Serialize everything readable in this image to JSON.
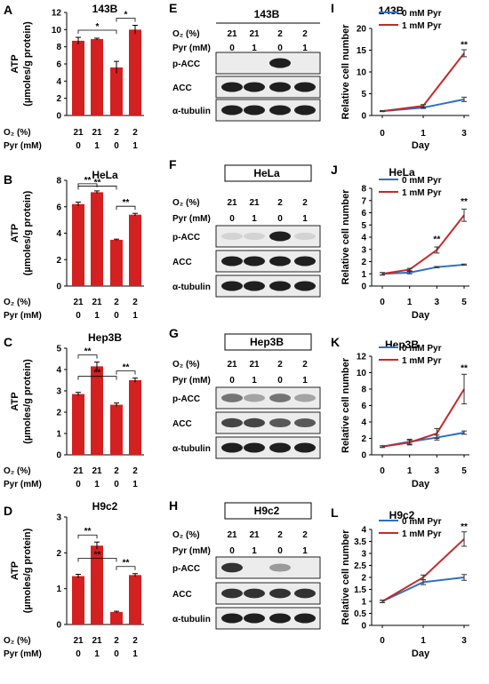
{
  "panels": {
    "bar_ylabel_1": "ATP",
    "bar_ylabel_2": "(µmoles/g protein)",
    "cond_row1_label": "O₂ (%)",
    "cond_row2_label": "Pyr (mM)",
    "cond_o2": [
      "21",
      "21",
      "2",
      "2"
    ],
    "cond_pyr": [
      "0",
      "1",
      "0",
      "1"
    ],
    "blot_rows": [
      "p-ACC",
      "ACC",
      "α-tubulin"
    ],
    "growth_xlabel": "Day",
    "growth_ylabel": "Relative cell number"
  },
  "colors": {
    "bar": "#d42020",
    "series_0mM": "#2e6fc4",
    "series_1mM": "#c42a2a"
  },
  "chart_data": [
    {
      "type": "bar",
      "letter": "A",
      "title": "143B",
      "categories": [
        "21/0",
        "21/1",
        "2/0",
        "2/1"
      ],
      "values": [
        8.7,
        8.9,
        5.6,
        10.0
      ],
      "errors": [
        0.4,
        0.1,
        0.7,
        0.5
      ],
      "ylim": [
        0,
        12
      ],
      "yticks": [
        0,
        2,
        4,
        6,
        8,
        10,
        12
      ],
      "sig": [
        {
          "from": 0,
          "to": 2,
          "label": "*"
        },
        {
          "from": 2,
          "to": 3,
          "label": "*"
        }
      ]
    },
    {
      "type": "bar",
      "letter": "B",
      "title": "HeLa",
      "categories": [
        "21/0",
        "21/1",
        "2/0",
        "2/1"
      ],
      "values": [
        6.2,
        7.1,
        3.5,
        5.4
      ],
      "errors": [
        0.15,
        0.1,
        0.05,
        0.1
      ],
      "ylim": [
        0,
        8
      ],
      "yticks": [
        0,
        2,
        4,
        6,
        8
      ],
      "sig": [
        {
          "from": 0,
          "to": 1,
          "label": "**"
        },
        {
          "from": 0,
          "to": 2,
          "label": "**"
        },
        {
          "from": 2,
          "to": 3,
          "label": "**"
        }
      ]
    },
    {
      "type": "bar",
      "letter": "C",
      "title": "Hep3B",
      "categories": [
        "21/0",
        "21/1",
        "2/0",
        "2/1"
      ],
      "values": [
        2.85,
        4.15,
        2.35,
        3.5
      ],
      "errors": [
        0.08,
        0.2,
        0.08,
        0.1
      ],
      "ylim": [
        0,
        5
      ],
      "yticks": [
        0,
        1,
        2,
        3,
        4,
        5
      ],
      "sig": [
        {
          "from": 0,
          "to": 1,
          "label": "**"
        },
        {
          "from": 0,
          "to": 2,
          "label": "**"
        },
        {
          "from": 2,
          "to": 3,
          "label": "**"
        }
      ]
    },
    {
      "type": "bar",
      "letter": "D",
      "title": "H9c2",
      "categories": [
        "21/0",
        "21/1",
        "2/0",
        "2/1"
      ],
      "values": [
        1.35,
        2.2,
        0.35,
        1.38
      ],
      "errors": [
        0.05,
        0.1,
        0.02,
        0.04
      ],
      "ylim": [
        0,
        3
      ],
      "yticks": [
        0,
        1,
        2,
        3
      ],
      "sig": [
        {
          "from": 0,
          "to": 1,
          "label": "**"
        },
        {
          "from": 0,
          "to": 2,
          "label": "**"
        },
        {
          "from": 2,
          "to": 3,
          "label": "**"
        }
      ]
    },
    {
      "type": "line",
      "letter": "I",
      "title": "143B",
      "x": [
        "0",
        "1",
        "3"
      ],
      "series": [
        {
          "name": "0 mM Pyr",
          "values": [
            1.0,
            1.8,
            3.7
          ],
          "errors": [
            0.1,
            0.2,
            0.5
          ]
        },
        {
          "name": "1 mM Pyr",
          "values": [
            1.0,
            2.2,
            14.3
          ],
          "errors": [
            0.1,
            0.3,
            0.8
          ]
        }
      ],
      "ylim": [
        0,
        20
      ],
      "yticks": [
        0,
        5,
        10,
        15,
        20
      ],
      "annot": [
        {
          "x": 2,
          "y": 15.6,
          "label": "**"
        }
      ],
      "legend": "top-left",
      "xlabel": "Day",
      "ylabel": "Relative cell number"
    },
    {
      "type": "line",
      "letter": "J",
      "title": "HeLa",
      "x": [
        "0",
        "1",
        "3",
        "5"
      ],
      "series": [
        {
          "name": "0 mM Pyr",
          "values": [
            1.0,
            1.1,
            1.55,
            1.75
          ],
          "errors": [
            0.1,
            0.1,
            0.05,
            0.05
          ]
        },
        {
          "name": "1 mM Pyr",
          "values": [
            1.0,
            1.35,
            2.95,
            5.8
          ],
          "errors": [
            0.1,
            0.1,
            0.25,
            0.5
          ]
        }
      ],
      "ylim": [
        0,
        8
      ],
      "yticks": [
        0,
        1,
        2,
        3,
        4,
        5,
        6,
        7,
        8
      ],
      "annot": [
        {
          "x": 2,
          "y": 3.6,
          "label": "**"
        },
        {
          "x": 3,
          "y": 6.7,
          "label": "**"
        }
      ],
      "legend": "top-left",
      "xlabel": "Day",
      "ylabel": "Relative cell number"
    },
    {
      "type": "line",
      "letter": "K",
      "title": "Hep3B",
      "x": [
        "0",
        "1",
        "3",
        "5"
      ],
      "series": [
        {
          "name": "0 mM Pyr",
          "values": [
            1.0,
            1.6,
            2.1,
            2.7
          ],
          "errors": [
            0.1,
            0.3,
            0.3,
            0.2
          ]
        },
        {
          "name": "1 mM Pyr",
          "values": [
            1.0,
            1.5,
            2.6,
            8.0
          ],
          "errors": [
            0.1,
            0.3,
            0.6,
            1.8
          ]
        }
      ],
      "ylim": [
        0,
        12
      ],
      "yticks": [
        0,
        2,
        4,
        6,
        8,
        10,
        12
      ],
      "annot": [
        {
          "x": 3,
          "y": 10.2,
          "label": "**"
        }
      ],
      "legend": "top-left",
      "xlabel": "Day",
      "ylabel": "Relative cell number"
    },
    {
      "type": "line",
      "letter": "L",
      "title": "H9c2",
      "x": [
        "0",
        "1",
        "3"
      ],
      "series": [
        {
          "name": "0 mM Pyr",
          "values": [
            1.0,
            1.8,
            2.0
          ],
          "errors": [
            0.05,
            0.1,
            0.12
          ]
        },
        {
          "name": "1 mM Pyr",
          "values": [
            1.0,
            2.0,
            3.6
          ],
          "errors": [
            0.05,
            0.1,
            0.3
          ]
        }
      ],
      "ylim": [
        0,
        4
      ],
      "yticks": [
        0,
        0.5,
        1,
        1.5,
        2,
        2.5,
        3,
        3.5,
        4
      ],
      "annot": [
        {
          "x": 2,
          "y": 4.0,
          "label": "**"
        }
      ],
      "legend": "top-left",
      "xlabel": "Day",
      "ylabel": "Relative cell number"
    }
  ],
  "blots": [
    {
      "letter": "E",
      "title": "143B",
      "bands": {
        "p-ACC": [
          0,
          0,
          1,
          0
        ],
        "ACC": [
          1,
          1,
          1,
          1
        ],
        "α-tubulin": [
          1,
          1,
          1,
          1
        ]
      }
    },
    {
      "letter": "F",
      "title": "HeLa",
      "bands": {
        "p-ACC": [
          0.05,
          0.05,
          1,
          0.05
        ],
        "ACC": [
          1,
          1,
          1,
          1
        ],
        "α-tubulin": [
          1,
          1,
          1,
          1
        ]
      }
    },
    {
      "letter": "G",
      "title": "Hep3B",
      "bands": {
        "p-ACC": [
          0.55,
          0.3,
          0.55,
          0.3
        ],
        "ACC": [
          0.8,
          0.8,
          0.7,
          0.7
        ],
        "α-tubulin": [
          1,
          1,
          1,
          1
        ]
      }
    },
    {
      "letter": "H",
      "title": "H9c2",
      "bands": {
        "p-ACC": [
          0.9,
          0,
          0.35,
          0
        ],
        "ACC": [
          0.9,
          0.9,
          0.9,
          0.9
        ],
        "α-tubulin": [
          1,
          1,
          1,
          1
        ]
      }
    }
  ]
}
